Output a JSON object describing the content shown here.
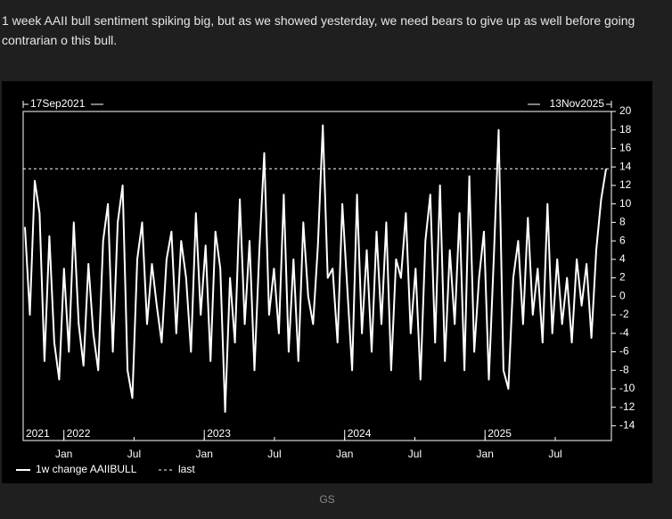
{
  "post": {
    "text": "1 week AAII bull sentiment spiking big, but as we showed yesterday, we need bears to give up as well before going contrarian o this bull.",
    "source": "GS"
  },
  "chart_data": {
    "type": "line",
    "start_label": "17Sep2021",
    "end_label": "13Nov2025",
    "xlim": [
      2021.71,
      2025.9
    ],
    "xticks": [
      {
        "value": 2022.0,
        "label": "Jan"
      },
      {
        "value": 2022.5,
        "label": "Jul"
      },
      {
        "value": 2023.0,
        "label": "Jan"
      },
      {
        "value": 2023.5,
        "label": "Jul"
      },
      {
        "value": 2024.0,
        "label": "Jan"
      },
      {
        "value": 2024.5,
        "label": "Jul"
      },
      {
        "value": 2025.0,
        "label": "Jan"
      },
      {
        "value": 2025.5,
        "label": "Jul"
      }
    ],
    "year_labels": [
      {
        "value": 2021.71,
        "label": "2021"
      },
      {
        "value": 2022.0,
        "label": "2022"
      },
      {
        "value": 2023.0,
        "label": "2023"
      },
      {
        "value": 2024.0,
        "label": "2024"
      },
      {
        "value": 2025.0,
        "label": "2025"
      }
    ],
    "ylim": [
      -15.6,
      20
    ],
    "yticks": [
      20,
      18,
      16,
      14,
      12,
      10,
      8,
      6,
      4,
      2,
      0,
      -2,
      -4,
      -6,
      -8,
      -10,
      -12,
      -14
    ],
    "series": [
      {
        "name": "1w change AAIIBULL",
        "color": "#ffffff",
        "values": [
          7.5,
          -2,
          12.5,
          9,
          -7,
          6.5,
          -5,
          -9,
          3,
          -6,
          8,
          -3,
          -7.5,
          3.5,
          -4,
          -8,
          6,
          10,
          -6,
          8,
          12,
          -8,
          -11,
          4,
          8,
          -3,
          3.5,
          -1,
          -5,
          4,
          7,
          -4,
          6,
          2,
          -6,
          9,
          -2,
          5.5,
          -7,
          7,
          3,
          -12.5,
          2,
          -5,
          10.5,
          -3,
          6,
          -8,
          5,
          15.5,
          -2,
          3,
          -4,
          11,
          -6,
          4,
          -7,
          8,
          0,
          -3,
          5.5,
          18.5,
          2,
          3,
          -5,
          10,
          1,
          -8,
          11,
          -4,
          5,
          -6,
          7,
          -3,
          8,
          -8,
          4,
          2,
          9,
          -4,
          3,
          -9,
          6,
          11,
          -5,
          12,
          -7,
          5,
          -3,
          9,
          -8,
          13,
          -6,
          2,
          7,
          -9,
          4,
          18,
          -8,
          -10,
          2,
          6,
          -3,
          8.5,
          -2,
          3,
          -5,
          10,
          -4,
          4,
          -3,
          2,
          -5,
          4,
          -1,
          3.5,
          -4.5,
          5,
          10.5,
          13.8
        ]
      }
    ],
    "reference_line": {
      "name": "last",
      "value": 13.8,
      "color": "#ffffff"
    }
  }
}
